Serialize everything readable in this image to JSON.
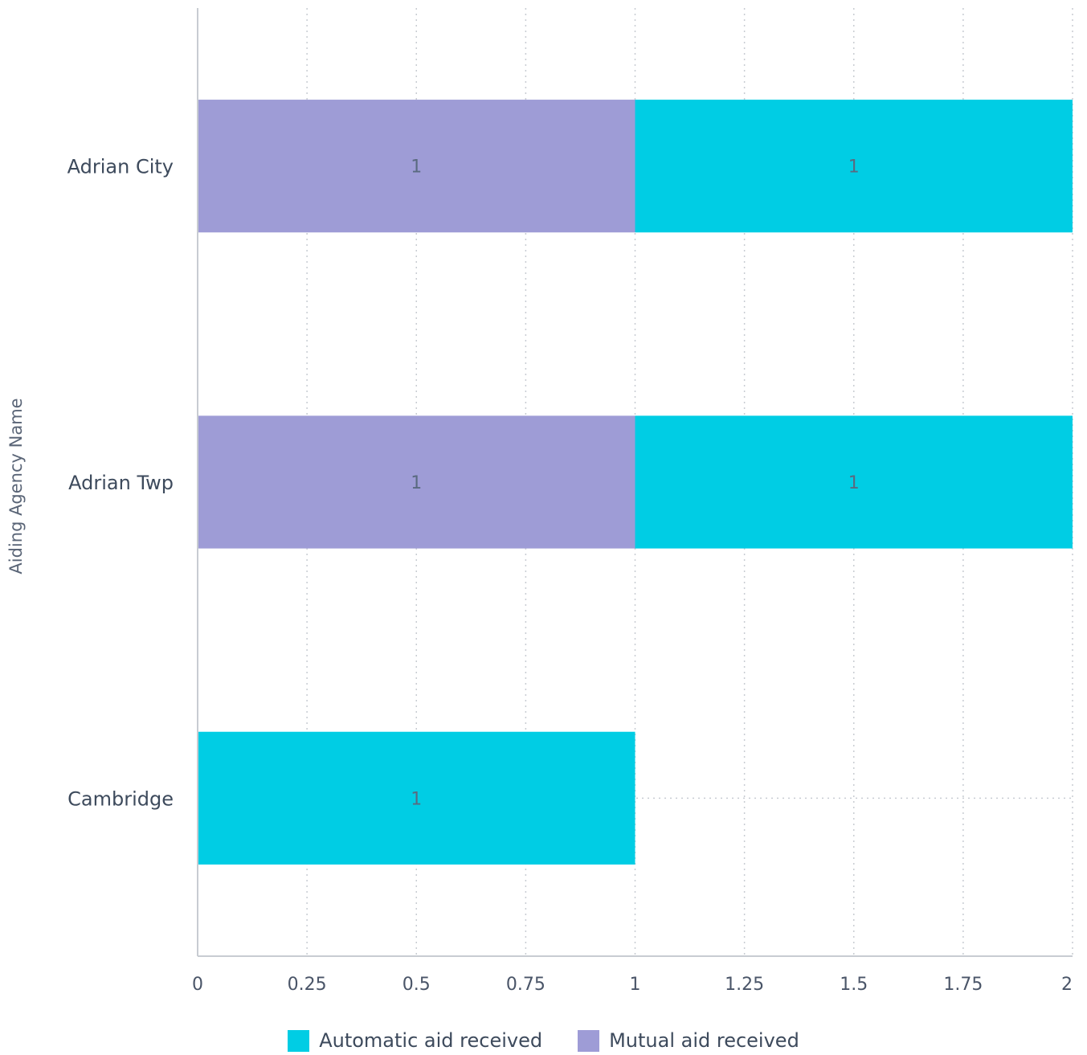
{
  "chart_data": {
    "type": "bar",
    "orientation": "horizontal",
    "stacked": true,
    "categories": [
      "Adrian City",
      "Adrian Twp",
      "Cambridge"
    ],
    "series": [
      {
        "name": "Mutual aid received",
        "values": [
          1,
          1,
          0
        ],
        "color": "#9e9cd6"
      },
      {
        "name": "Automatic aid received",
        "values": [
          1,
          1,
          1
        ],
        "color": "#00cde4"
      }
    ],
    "legend_order": [
      "Automatic aid received",
      "Mutual aid received"
    ],
    "xlim": [
      0,
      2
    ],
    "xticks": [
      "0",
      "0.25",
      "0.5",
      "0.75",
      "1",
      "1.25",
      "1.5",
      "1.75",
      "2"
    ],
    "xtick_values": [
      0,
      0.25,
      0.5,
      0.75,
      1,
      1.25,
      1.5,
      1.75,
      2
    ],
    "ylabel": "Aiding Agency Name",
    "xlabel": "",
    "grid": "vertical dotted",
    "legend_position": "bottom",
    "data_labels": true
  }
}
